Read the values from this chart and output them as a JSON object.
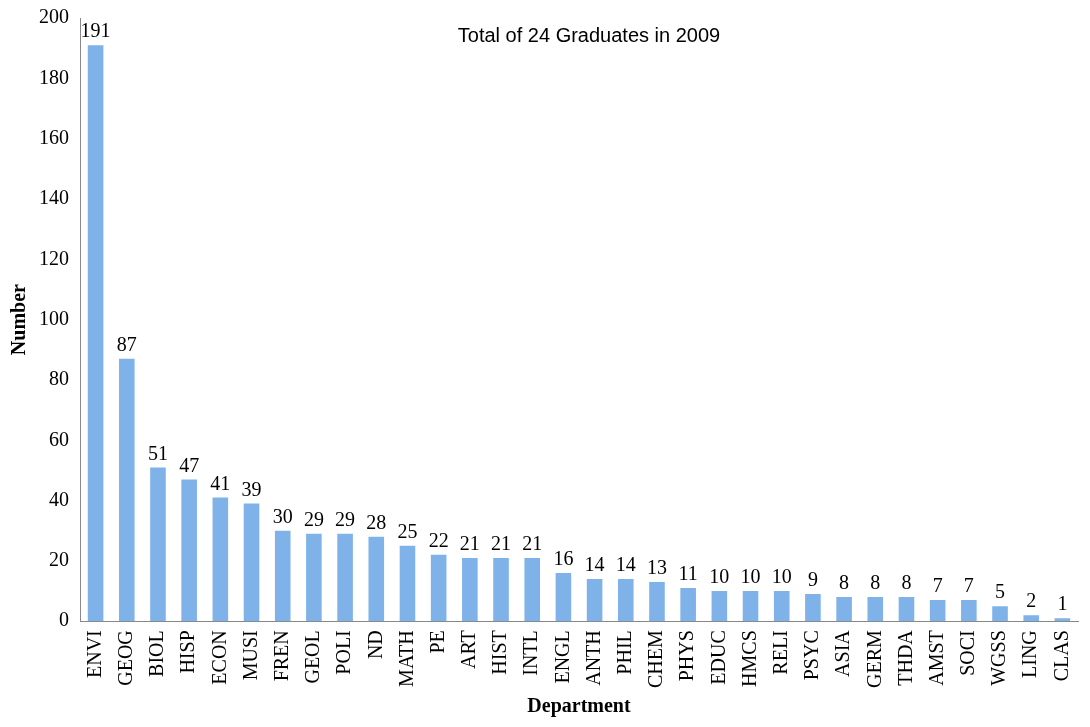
{
  "chart_data": {
    "type": "bar",
    "title": "Total of 24 Graduates in 2009",
    "xlabel": "Department",
    "ylabel": "Number",
    "categories": [
      "ENVI",
      "GEOG",
      "BIOL",
      "HISP",
      "ECON",
      "MUSI",
      "FREN",
      "GEOL",
      "POLI",
      "ND",
      "MATH",
      "PE",
      "ART",
      "HIST",
      "INTL",
      "ENGL",
      "ANTH",
      "PHIL",
      "CHEM",
      "PHYS",
      "EDUC",
      "HMCS",
      "RELI",
      "PSYC",
      "ASIA",
      "GERM",
      "THDA",
      "AMST",
      "SOCI",
      "WGSS",
      "LING",
      "CLAS"
    ],
    "values": [
      191,
      87,
      51,
      47,
      41,
      39,
      30,
      29,
      29,
      28,
      25,
      22,
      21,
      21,
      21,
      16,
      14,
      14,
      13,
      11,
      10,
      10,
      10,
      9,
      8,
      8,
      8,
      7,
      7,
      5,
      2,
      1
    ],
    "color": "#7fb2e8",
    "ylim": [
      0,
      200
    ],
    "yticks": [
      0,
      20,
      40,
      60,
      80,
      100,
      120,
      140,
      160,
      180,
      200
    ],
    "grid": false,
    "legend": false,
    "data_labels": true
  }
}
